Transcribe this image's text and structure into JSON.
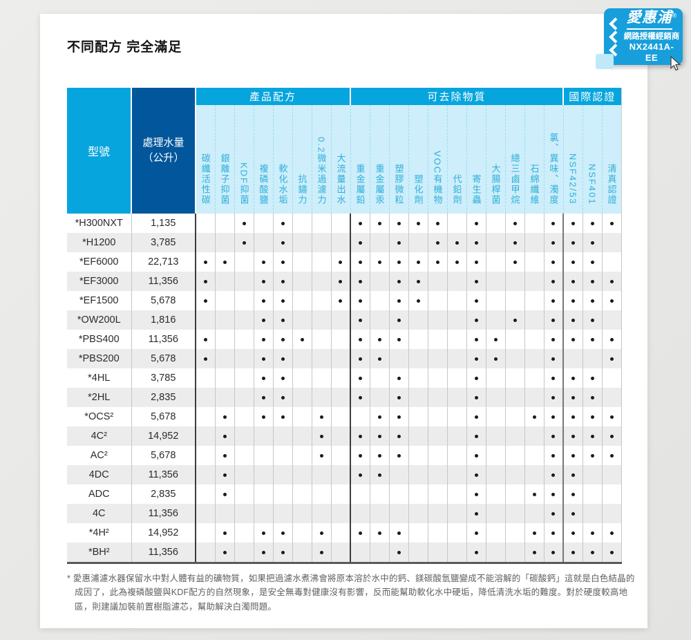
{
  "page": {
    "title": "不同配方 完全滿足"
  },
  "badge": {
    "brand": "愛惠浦",
    "reg": "®",
    "line2": "網路授權經銷商",
    "line3": "NX2441A-EE",
    "chevron_icon": "triple-chevron-left"
  },
  "cursor": {
    "icon": "mouse-pointer"
  },
  "table": {
    "col_model": "型號",
    "col_volume_line1": "處理水量",
    "col_volume_line2": "（公升）",
    "sections": [
      {
        "title": "產品配方",
        "labels": [
          "碳纖活性碳",
          "銀離子抑菌",
          "KDF抑菌",
          "複磷酸鹽",
          "軟化水垢",
          "抗鏽力",
          "0.2微米過濾力",
          "大流量出水"
        ]
      },
      {
        "title": "可去除物質",
        "labels": [
          "重金屬鉛",
          "重金屬汞",
          "塑膠微粒",
          "塑化劑",
          "VOC有機物",
          "代鉛劑",
          "寄生蟲",
          "大腸桿菌",
          "總三鹵甲烷",
          "石綿纖維",
          "氯、異味、濁度"
        ]
      },
      {
        "title": "國際認證",
        "labels": [
          "NSF42/53",
          "NSF401",
          "清真認證"
        ]
      }
    ],
    "rows": [
      {
        "model": "*H300NXT",
        "volume": "1,135",
        "marks": [
          0,
          0,
          1,
          0,
          1,
          0,
          0,
          0,
          1,
          1,
          1,
          1,
          1,
          0,
          1,
          0,
          1,
          0,
          1,
          1,
          1,
          1
        ]
      },
      {
        "model": "*H1200",
        "volume": "3,785",
        "marks": [
          0,
          0,
          1,
          0,
          1,
          0,
          0,
          0,
          1,
          0,
          1,
          0,
          1,
          1,
          1,
          0,
          1,
          0,
          1,
          1,
          1,
          0
        ]
      },
      {
        "model": "*EF6000",
        "volume": "22,713",
        "marks": [
          1,
          1,
          0,
          1,
          1,
          0,
          0,
          1,
          1,
          1,
          1,
          1,
          1,
          1,
          1,
          0,
          1,
          0,
          1,
          1,
          1,
          0
        ]
      },
      {
        "model": "*EF3000",
        "volume": "11,356",
        "marks": [
          1,
          0,
          0,
          1,
          1,
          0,
          0,
          1,
          1,
          0,
          1,
          1,
          0,
          0,
          1,
          0,
          0,
          0,
          1,
          1,
          1,
          1
        ]
      },
      {
        "model": "*EF1500",
        "volume": "5,678",
        "marks": [
          1,
          0,
          0,
          1,
          1,
          0,
          0,
          1,
          1,
          0,
          1,
          1,
          0,
          0,
          1,
          0,
          0,
          0,
          1,
          1,
          1,
          1
        ]
      },
      {
        "model": "*OW200L",
        "volume": "1,816",
        "marks": [
          0,
          0,
          0,
          1,
          1,
          0,
          0,
          0,
          1,
          0,
          1,
          0,
          0,
          0,
          1,
          0,
          1,
          0,
          1,
          1,
          1,
          0
        ]
      },
      {
        "model": "*PBS400",
        "volume": "11,356",
        "marks": [
          1,
          0,
          0,
          1,
          1,
          1,
          0,
          0,
          1,
          1,
          1,
          0,
          0,
          0,
          1,
          1,
          0,
          0,
          1,
          1,
          1,
          1
        ]
      },
      {
        "model": "*PBS200",
        "volume": "5,678",
        "marks": [
          1,
          0,
          0,
          1,
          1,
          0,
          0,
          0,
          1,
          1,
          0,
          0,
          0,
          0,
          1,
          1,
          0,
          0,
          1,
          0,
          0,
          1
        ]
      },
      {
        "model": "*4HL",
        "volume": "3,785",
        "marks": [
          0,
          0,
          0,
          1,
          1,
          0,
          0,
          0,
          1,
          0,
          1,
          0,
          0,
          0,
          1,
          0,
          0,
          0,
          1,
          1,
          1,
          0
        ]
      },
      {
        "model": "*2HL",
        "volume": "2,835",
        "marks": [
          0,
          0,
          0,
          1,
          1,
          0,
          0,
          0,
          1,
          0,
          1,
          0,
          0,
          0,
          1,
          0,
          0,
          0,
          1,
          1,
          1,
          0
        ]
      },
      {
        "model": "*OCS²",
        "volume": "5,678",
        "marks": [
          0,
          1,
          0,
          1,
          1,
          0,
          1,
          0,
          0,
          1,
          1,
          0,
          0,
          0,
          1,
          0,
          0,
          1,
          1,
          1,
          1,
          1
        ]
      },
      {
        "model": "4C²",
        "volume": "14,952",
        "marks": [
          0,
          1,
          0,
          0,
          0,
          0,
          1,
          0,
          1,
          1,
          1,
          0,
          0,
          0,
          1,
          0,
          0,
          0,
          1,
          1,
          1,
          1
        ]
      },
      {
        "model": "AC²",
        "volume": "5,678",
        "marks": [
          0,
          1,
          0,
          0,
          0,
          0,
          1,
          0,
          1,
          1,
          1,
          0,
          0,
          0,
          1,
          0,
          0,
          0,
          1,
          1,
          1,
          1
        ]
      },
      {
        "model": "4DC",
        "volume": "11,356",
        "marks": [
          0,
          1,
          0,
          0,
          0,
          0,
          0,
          0,
          1,
          1,
          0,
          0,
          0,
          0,
          1,
          0,
          0,
          0,
          1,
          1,
          0,
          0
        ]
      },
      {
        "model": "ADC",
        "volume": "2,835",
        "marks": [
          0,
          1,
          0,
          0,
          0,
          0,
          0,
          0,
          0,
          0,
          0,
          0,
          0,
          0,
          1,
          0,
          0,
          1,
          1,
          1,
          0,
          0
        ]
      },
      {
        "model": "4C",
        "volume": "11,356",
        "marks": [
          0,
          0,
          0,
          0,
          0,
          0,
          0,
          0,
          0,
          0,
          0,
          0,
          0,
          0,
          1,
          0,
          0,
          0,
          1,
          1,
          0,
          0
        ]
      },
      {
        "model": "*4H²",
        "volume": "14,952",
        "marks": [
          0,
          1,
          0,
          1,
          1,
          0,
          1,
          0,
          1,
          1,
          1,
          0,
          0,
          0,
          1,
          0,
          0,
          1,
          1,
          1,
          1,
          1
        ]
      },
      {
        "model": "*BH²",
        "volume": "11,356",
        "marks": [
          0,
          1,
          0,
          1,
          1,
          0,
          1,
          0,
          0,
          0,
          1,
          0,
          0,
          0,
          1,
          0,
          0,
          1,
          1,
          1,
          1,
          1
        ]
      }
    ]
  },
  "footnote": {
    "marker": "*",
    "text": "愛惠浦濾水器保留水中對人體有益的礦物質，如果把過濾水煮沸會將原本溶於水中的鈣、鎂碳酸氫鹽變成不能溶解的「碳酸鈣」這就是白色結晶的成因了，此為複磷酸鹽與KDF配方的自然現象，是安全無毒對健康沒有影響，反而能幫助軟化水中硬垢，降低清洗水垢的難度。對於硬度較高地區，則建議加裝前置樹脂濾芯，幫助解決白濁問題。"
  },
  "colors": {
    "header_cyan": "#06a5dd",
    "header_dark_blue": "#02569b",
    "label_bg": "#cdeefa",
    "label_text": "#2fafda",
    "row_stripe": "#ececec",
    "badge_blue": "#189fdb",
    "dot": "#1b1b1b"
  }
}
